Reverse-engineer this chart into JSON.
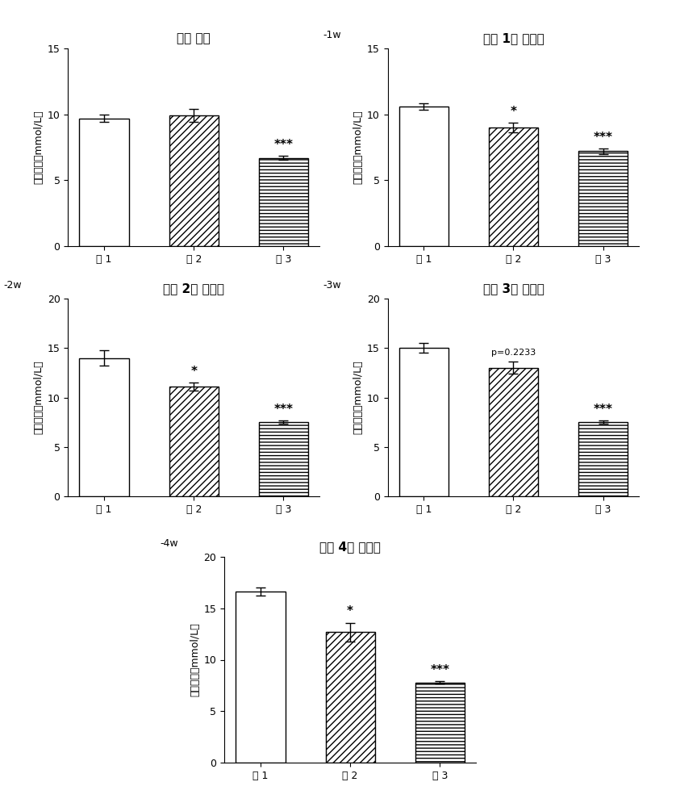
{
  "panels": [
    {
      "title": "初始 血糖",
      "ylabel_base": "血糖含量（mmol/L）",
      "ylabel_suffix": "",
      "ylim": [
        0,
        15
      ],
      "yticks": [
        0,
        5,
        10,
        15
      ],
      "values": [
        9.7,
        9.9,
        6.7
      ],
      "errors": [
        0.3,
        0.5,
        0.15
      ],
      "annotations": [
        "",
        "",
        "***"
      ],
      "categories": [
        "组 1",
        "组 2",
        "组 3"
      ]
    },
    {
      "title": "给药 1周 后血糖",
      "ylabel_base": "血糖含量（mmol/L）",
      "ylabel_suffix": "-1w",
      "ylim": [
        0,
        15
      ],
      "yticks": [
        0,
        5,
        10,
        15
      ],
      "values": [
        10.6,
        9.0,
        7.2
      ],
      "errors": [
        0.25,
        0.35,
        0.2
      ],
      "annotations": [
        "",
        "*",
        "***"
      ],
      "categories": [
        "组 1",
        "组 2",
        "组 3"
      ]
    },
    {
      "title": "给药 2周 后血糖",
      "ylabel_base": "血糖含量（mmol/L）",
      "ylabel_suffix": "-2w",
      "ylim": [
        0,
        20
      ],
      "yticks": [
        0,
        5,
        10,
        15,
        20
      ],
      "values": [
        14.0,
        11.1,
        7.5
      ],
      "errors": [
        0.8,
        0.4,
        0.15
      ],
      "annotations": [
        "",
        "*",
        "***"
      ],
      "categories": [
        "组 1",
        "组 2",
        "组 3"
      ]
    },
    {
      "title": "给药 3周 后血糖",
      "ylabel_base": "血糖含量（mmol/L）",
      "ylabel_suffix": "-3w",
      "ylim": [
        0,
        20
      ],
      "yticks": [
        0,
        5,
        10,
        15,
        20
      ],
      "values": [
        15.0,
        13.0,
        7.5
      ],
      "errors": [
        0.5,
        0.6,
        0.15
      ],
      "annotations": [
        "",
        "p=0.2233",
        "***"
      ],
      "categories": [
        "组 1",
        "组 2",
        "组 3"
      ]
    },
    {
      "title": "给药 4周 后血糖",
      "ylabel_base": "血糖含量（mmol/L）",
      "ylabel_suffix": "-4w",
      "ylim": [
        0,
        20
      ],
      "yticks": [
        0,
        5,
        10,
        15,
        20
      ],
      "values": [
        16.6,
        12.7,
        7.8
      ],
      "errors": [
        0.4,
        0.9,
        0.1
      ],
      "annotations": [
        "",
        "*",
        "***"
      ],
      "categories": [
        "组 1",
        "组 2",
        "组 3"
      ]
    }
  ],
  "bar_patterns": [
    "",
    "////",
    "----"
  ],
  "bar_facecolors": [
    "white",
    "white",
    "white"
  ],
  "bar_edgecolor": "black",
  "bar_width": 0.55,
  "background_color": "white"
}
